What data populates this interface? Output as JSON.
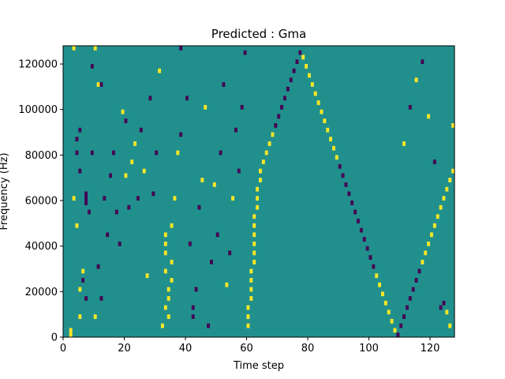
{
  "chart_data": {
    "type": "heatmap",
    "title": "Predicted : Gma",
    "xlabel": "Time step",
    "ylabel": "Frequency (Hz)",
    "xlim": [
      0,
      128
    ],
    "ylim": [
      0,
      128000
    ],
    "xticks": [
      0,
      20,
      40,
      60,
      80,
      100,
      120
    ],
    "yticks": [
      0,
      20000,
      40000,
      60000,
      80000,
      100000,
      120000
    ],
    "xtick_labels": [
      "0",
      "20",
      "40",
      "60",
      "80",
      "100",
      "120"
    ],
    "ytick_labels": [
      "0",
      "20000",
      "40000",
      "60000",
      "80000",
      "100000",
      "120000"
    ],
    "n_cols": 128,
    "n_rows": 64,
    "levels": {
      "low": -1,
      "mid": 0,
      "high": 1
    },
    "colors": {
      "low": "#440154",
      "mid": "#21908d",
      "high": "#fde725"
    },
    "grid": false,
    "cells": [
      {
        "x": 2,
        "y": 0,
        "v": 1
      },
      {
        "x": 2,
        "y": 1,
        "v": 1
      },
      {
        "x": 5,
        "y": 4,
        "v": 1
      },
      {
        "x": 5,
        "y": 10,
        "v": 1
      },
      {
        "x": 6,
        "y": 12,
        "v": -1
      },
      {
        "x": 7,
        "y": 8,
        "v": -1
      },
      {
        "x": 6,
        "y": 14,
        "v": 1
      },
      {
        "x": 4,
        "y": 24,
        "v": 1
      },
      {
        "x": 3,
        "y": 30,
        "v": 1
      },
      {
        "x": 7,
        "y": 29,
        "v": -1
      },
      {
        "x": 7,
        "y": 30,
        "v": -1
      },
      {
        "x": 7,
        "y": 31,
        "v": -1
      },
      {
        "x": 8,
        "y": 27,
        "v": -1
      },
      {
        "x": 5,
        "y": 36,
        "v": -1
      },
      {
        "x": 4,
        "y": 40,
        "v": -1
      },
      {
        "x": 5,
        "y": 45,
        "v": -1
      },
      {
        "x": 4,
        "y": 43,
        "v": -1
      },
      {
        "x": 9,
        "y": 40,
        "v": -1
      },
      {
        "x": 3,
        "y": 63,
        "v": 1
      },
      {
        "x": 10,
        "y": 63,
        "v": 1
      },
      {
        "x": 11,
        "y": 55,
        "v": 1
      },
      {
        "x": 12,
        "y": 55,
        "v": -1
      },
      {
        "x": 9,
        "y": 59,
        "v": -1
      },
      {
        "x": 10,
        "y": 4,
        "v": 1
      },
      {
        "x": 11,
        "y": 15,
        "v": -1
      },
      {
        "x": 12,
        "y": 8,
        "v": -1
      },
      {
        "x": 13,
        "y": 30,
        "v": -1
      },
      {
        "x": 14,
        "y": 22,
        "v": -1
      },
      {
        "x": 15,
        "y": 35,
        "v": -1
      },
      {
        "x": 16,
        "y": 40,
        "v": -1
      },
      {
        "x": 17,
        "y": 27,
        "v": -1
      },
      {
        "x": 18,
        "y": 20,
        "v": -1
      },
      {
        "x": 19,
        "y": 49,
        "v": 1
      },
      {
        "x": 20,
        "y": 47,
        "v": -1
      },
      {
        "x": 20,
        "y": 35,
        "v": 1
      },
      {
        "x": 21,
        "y": 28,
        "v": -1
      },
      {
        "x": 22,
        "y": 38,
        "v": 1
      },
      {
        "x": 23,
        "y": 42,
        "v": 1
      },
      {
        "x": 24,
        "y": 30,
        "v": -1
      },
      {
        "x": 25,
        "y": 45,
        "v": -1
      },
      {
        "x": 26,
        "y": 36,
        "v": 1
      },
      {
        "x": 27,
        "y": 13,
        "v": 1
      },
      {
        "x": 28,
        "y": 52,
        "v": -1
      },
      {
        "x": 29,
        "y": 31,
        "v": -1
      },
      {
        "x": 30,
        "y": 40,
        "v": -1
      },
      {
        "x": 31,
        "y": 58,
        "v": 1
      },
      {
        "x": 32,
        "y": 2,
        "v": 1
      },
      {
        "x": 33,
        "y": 6,
        "v": 1
      },
      {
        "x": 33,
        "y": 14,
        "v": 1
      },
      {
        "x": 33,
        "y": 18,
        "v": 1
      },
      {
        "x": 33,
        "y": 20,
        "v": 1
      },
      {
        "x": 33,
        "y": 22,
        "v": 1
      },
      {
        "x": 34,
        "y": 4,
        "v": 1
      },
      {
        "x": 34,
        "y": 8,
        "v": 1
      },
      {
        "x": 34,
        "y": 10,
        "v": 1
      },
      {
        "x": 35,
        "y": 12,
        "v": 1
      },
      {
        "x": 35,
        "y": 16,
        "v": 1
      },
      {
        "x": 35,
        "y": 24,
        "v": 1
      },
      {
        "x": 36,
        "y": 30,
        "v": 1
      },
      {
        "x": 37,
        "y": 40,
        "v": 1
      },
      {
        "x": 38,
        "y": 44,
        "v": -1
      },
      {
        "x": 38,
        "y": 63,
        "v": -1
      },
      {
        "x": 40,
        "y": 52,
        "v": -1
      },
      {
        "x": 41,
        "y": 20,
        "v": -1
      },
      {
        "x": 42,
        "y": 4,
        "v": -1
      },
      {
        "x": 42,
        "y": 6,
        "v": -1
      },
      {
        "x": 43,
        "y": 10,
        "v": -1
      },
      {
        "x": 44,
        "y": 28,
        "v": -1
      },
      {
        "x": 45,
        "y": 34,
        "v": 1
      },
      {
        "x": 46,
        "y": 50,
        "v": 1
      },
      {
        "x": 47,
        "y": 2,
        "v": -1
      },
      {
        "x": 48,
        "y": 16,
        "v": -1
      },
      {
        "x": 49,
        "y": 33,
        "v": 1
      },
      {
        "x": 50,
        "y": 22,
        "v": -1
      },
      {
        "x": 51,
        "y": 40,
        "v": -1
      },
      {
        "x": 52,
        "y": 55,
        "v": -1
      },
      {
        "x": 53,
        "y": 11,
        "v": 1
      },
      {
        "x": 54,
        "y": 18,
        "v": -1
      },
      {
        "x": 55,
        "y": 30,
        "v": 1
      },
      {
        "x": 56,
        "y": 45,
        "v": -1
      },
      {
        "x": 57,
        "y": 36,
        "v": -1
      },
      {
        "x": 58,
        "y": 50,
        "v": -1
      },
      {
        "x": 59,
        "y": 62,
        "v": -1
      },
      {
        "x": 60,
        "y": 2,
        "v": 1
      },
      {
        "x": 60,
        "y": 4,
        "v": 1
      },
      {
        "x": 60,
        "y": 6,
        "v": 1
      },
      {
        "x": 61,
        "y": 8,
        "v": 1
      },
      {
        "x": 61,
        "y": 10,
        "v": 1
      },
      {
        "x": 61,
        "y": 12,
        "v": 1
      },
      {
        "x": 61,
        "y": 14,
        "v": 1
      },
      {
        "x": 62,
        "y": 16,
        "v": 1
      },
      {
        "x": 62,
        "y": 18,
        "v": 1
      },
      {
        "x": 62,
        "y": 20,
        "v": 1
      },
      {
        "x": 62,
        "y": 22,
        "v": 1
      },
      {
        "x": 62,
        "y": 24,
        "v": 1
      },
      {
        "x": 62,
        "y": 26,
        "v": 1
      },
      {
        "x": 63,
        "y": 28,
        "v": 1
      },
      {
        "x": 63,
        "y": 30,
        "v": 1
      },
      {
        "x": 63,
        "y": 32,
        "v": 1
      },
      {
        "x": 64,
        "y": 34,
        "v": 1
      },
      {
        "x": 64,
        "y": 36,
        "v": 1
      },
      {
        "x": 65,
        "y": 38,
        "v": 1
      },
      {
        "x": 66,
        "y": 40,
        "v": 1
      },
      {
        "x": 67,
        "y": 42,
        "v": 1
      },
      {
        "x": 68,
        "y": 44,
        "v": 1
      },
      {
        "x": 69,
        "y": 46,
        "v": -1
      },
      {
        "x": 70,
        "y": 48,
        "v": -1
      },
      {
        "x": 71,
        "y": 50,
        "v": -1
      },
      {
        "x": 72,
        "y": 52,
        "v": -1
      },
      {
        "x": 73,
        "y": 54,
        "v": -1
      },
      {
        "x": 74,
        "y": 56,
        "v": -1
      },
      {
        "x": 75,
        "y": 58,
        "v": -1
      },
      {
        "x": 76,
        "y": 60,
        "v": -1
      },
      {
        "x": 77,
        "y": 62,
        "v": -1
      },
      {
        "x": 78,
        "y": 61,
        "v": 1
      },
      {
        "x": 79,
        "y": 59,
        "v": 1
      },
      {
        "x": 80,
        "y": 57,
        "v": 1
      },
      {
        "x": 81,
        "y": 55,
        "v": 1
      },
      {
        "x": 82,
        "y": 53,
        "v": 1
      },
      {
        "x": 83,
        "y": 51,
        "v": 1
      },
      {
        "x": 84,
        "y": 49,
        "v": 1
      },
      {
        "x": 85,
        "y": 47,
        "v": 1
      },
      {
        "x": 86,
        "y": 45,
        "v": 1
      },
      {
        "x": 87,
        "y": 43,
        "v": 1
      },
      {
        "x": 88,
        "y": 41,
        "v": 1
      },
      {
        "x": 89,
        "y": 39,
        "v": 1
      },
      {
        "x": 90,
        "y": 37,
        "v": -1
      },
      {
        "x": 91,
        "y": 35,
        "v": -1
      },
      {
        "x": 92,
        "y": 33,
        "v": -1
      },
      {
        "x": 93,
        "y": 31,
        "v": -1
      },
      {
        "x": 94,
        "y": 29,
        "v": -1
      },
      {
        "x": 95,
        "y": 27,
        "v": -1
      },
      {
        "x": 96,
        "y": 25,
        "v": -1
      },
      {
        "x": 97,
        "y": 23,
        "v": -1
      },
      {
        "x": 98,
        "y": 21,
        "v": -1
      },
      {
        "x": 99,
        "y": 19,
        "v": -1
      },
      {
        "x": 100,
        "y": 17,
        "v": -1
      },
      {
        "x": 101,
        "y": 15,
        "v": -1
      },
      {
        "x": 102,
        "y": 13,
        "v": 1
      },
      {
        "x": 103,
        "y": 11,
        "v": 1
      },
      {
        "x": 104,
        "y": 9,
        "v": 1
      },
      {
        "x": 105,
        "y": 7,
        "v": 1
      },
      {
        "x": 106,
        "y": 5,
        "v": 1
      },
      {
        "x": 107,
        "y": 3,
        "v": 1
      },
      {
        "x": 108,
        "y": 1,
        "v": 1
      },
      {
        "x": 109,
        "y": 0,
        "v": -1
      },
      {
        "x": 110,
        "y": 2,
        "v": -1
      },
      {
        "x": 111,
        "y": 4,
        "v": -1
      },
      {
        "x": 112,
        "y": 6,
        "v": -1
      },
      {
        "x": 113,
        "y": 8,
        "v": -1
      },
      {
        "x": 114,
        "y": 10,
        "v": -1
      },
      {
        "x": 115,
        "y": 12,
        "v": -1
      },
      {
        "x": 116,
        "y": 14,
        "v": -1
      },
      {
        "x": 117,
        "y": 16,
        "v": 1
      },
      {
        "x": 118,
        "y": 18,
        "v": 1
      },
      {
        "x": 119,
        "y": 20,
        "v": 1
      },
      {
        "x": 120,
        "y": 22,
        "v": 1
      },
      {
        "x": 121,
        "y": 24,
        "v": 1
      },
      {
        "x": 122,
        "y": 26,
        "v": 1
      },
      {
        "x": 123,
        "y": 28,
        "v": 1
      },
      {
        "x": 124,
        "y": 30,
        "v": 1
      },
      {
        "x": 125,
        "y": 32,
        "v": 1
      },
      {
        "x": 126,
        "y": 34,
        "v": 1
      },
      {
        "x": 127,
        "y": 36,
        "v": 1
      },
      {
        "x": 111,
        "y": 42,
        "v": 1
      },
      {
        "x": 113,
        "y": 50,
        "v": -1
      },
      {
        "x": 115,
        "y": 56,
        "v": 1
      },
      {
        "x": 117,
        "y": 60,
        "v": -1
      },
      {
        "x": 119,
        "y": 48,
        "v": 1
      },
      {
        "x": 121,
        "y": 38,
        "v": -1
      },
      {
        "x": 123,
        "y": 6,
        "v": -1
      },
      {
        "x": 124,
        "y": 7,
        "v": -1
      },
      {
        "x": 125,
        "y": 5,
        "v": 1
      },
      {
        "x": 126,
        "y": 2,
        "v": 1
      },
      {
        "x": 127,
        "y": 46,
        "v": 1
      }
    ]
  }
}
